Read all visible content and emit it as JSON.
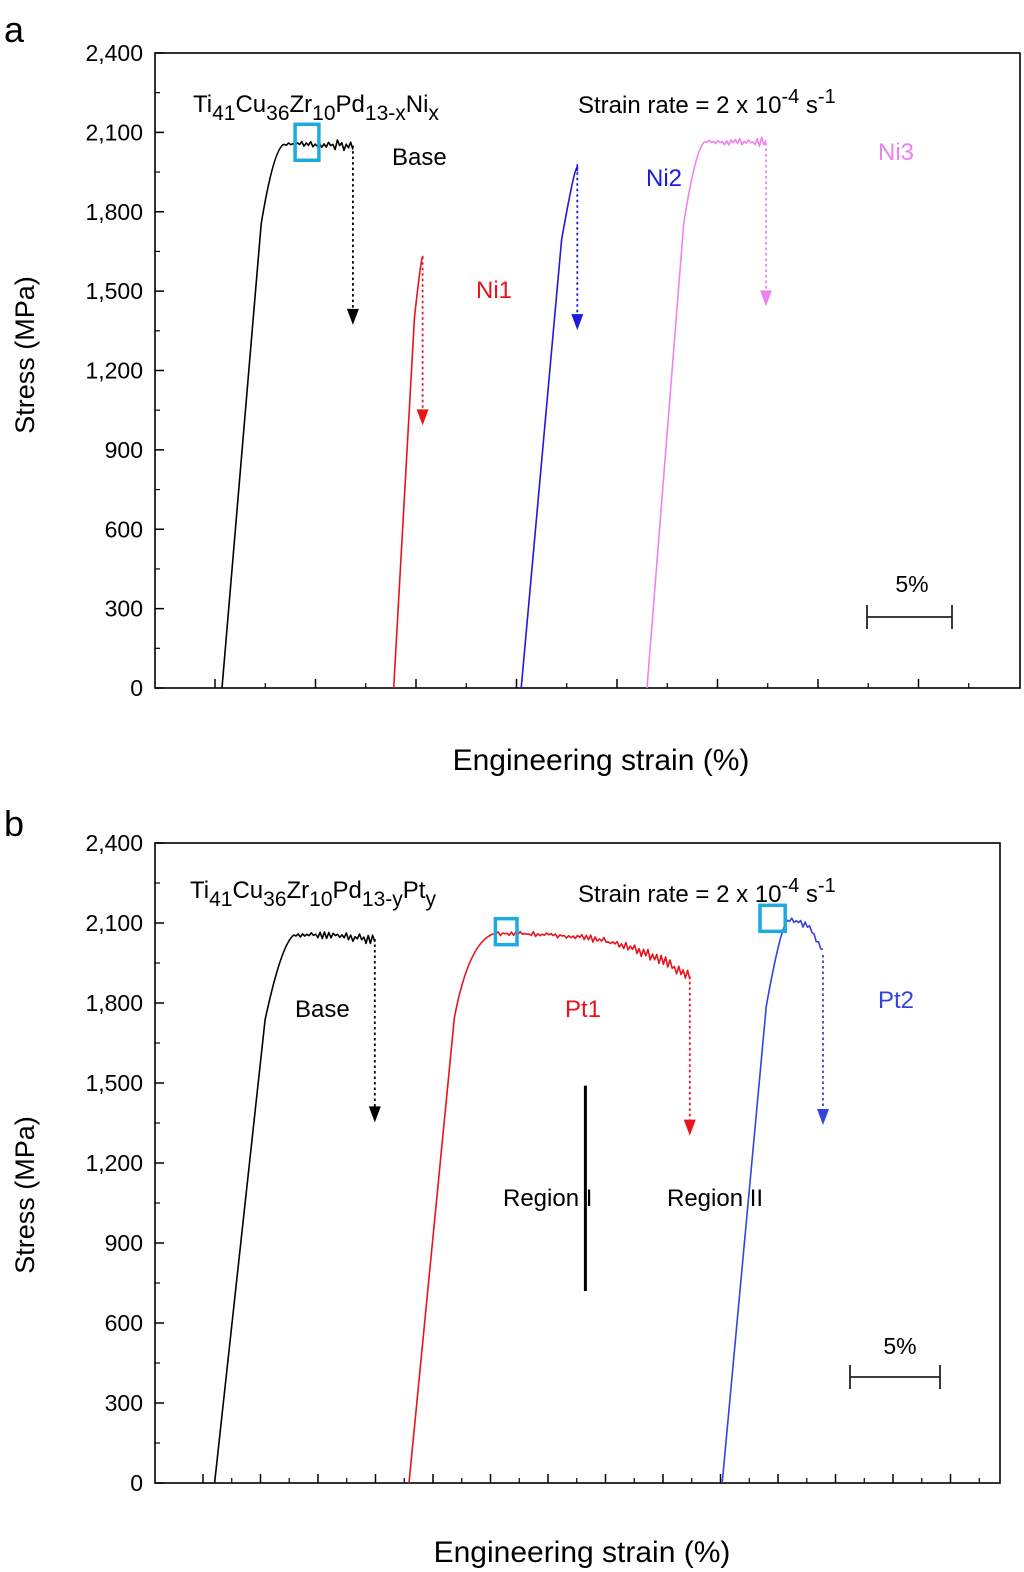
{
  "chart_data": [
    {
      "panel_letter": "a",
      "type": "line",
      "xlabel": "Engineering strain (%)",
      "ylabel": "Stress (MPa)",
      "ylim": [
        0,
        2400
      ],
      "yticks": [
        "0",
        "300",
        "600",
        "900",
        "1,200",
        "1,500",
        "1,800",
        "2,100",
        "2,400"
      ],
      "xticks_labeled": false,
      "grid": false,
      "composition": {
        "base": "Ti",
        "parts": [
          [
            "41",
            "Cu"
          ],
          [
            "36",
            "Zr"
          ],
          [
            "10",
            "Pd"
          ],
          [
            "13-x",
            "Ni"
          ],
          [
            "x",
            ""
          ]
        ]
      },
      "strain_rate": {
        "prefix": "Strain rate = 2 x 10",
        "exp": "-4",
        "mid": " s",
        "exp2": "-1"
      },
      "scale_bar_label": "5%",
      "scale_bar_strain": 5,
      "series": [
        {
          "name": "Base",
          "color": "#000000",
          "start_strain": 0.0,
          "elastic_end_strain": 3.2,
          "yield_stress": 2040,
          "plateau_stress": 2055,
          "fracture_strain": 7.7,
          "fracture_stress": 2050,
          "drop_to_stress": 1380,
          "highlight_box": [
            4.3,
            5.7
          ]
        },
        {
          "name": "Ni1",
          "color": "#e8141c",
          "start_strain": 10.1,
          "elastic_end_strain": 11.8,
          "yield_stress": 1630,
          "plateau_stress": 1630,
          "fracture_strain": 11.8,
          "fracture_stress": 1630,
          "drop_to_stress": 1000
        },
        {
          "name": "Ni2",
          "color": "#1a1ae0",
          "start_strain": 17.6,
          "elastic_end_strain": 20.9,
          "yield_stress": 1970,
          "plateau_stress": 1970,
          "fracture_strain": 20.9,
          "fracture_stress": 1970,
          "drop_to_stress": 1360
        },
        {
          "name": "Ni3",
          "color": "#ee82ee",
          "start_strain": 25.0,
          "elastic_end_strain": 28.0,
          "yield_stress": 2040,
          "plateau_stress": 2065,
          "fracture_strain": 32.0,
          "fracture_stress": 2060,
          "drop_to_stress": 1450
        }
      ]
    },
    {
      "panel_letter": "b",
      "type": "line",
      "xlabel": "Engineering strain (%)",
      "ylabel": "Stress (MPa)",
      "ylim": [
        0,
        2400
      ],
      "yticks": [
        "0",
        "300",
        "600",
        "900",
        "1,200",
        "1,500",
        "1,800",
        "2,100",
        "2,400"
      ],
      "xticks_labeled": false,
      "grid": false,
      "composition": {
        "base": "Ti",
        "parts": [
          [
            "41",
            "Cu"
          ],
          [
            "36",
            "Zr"
          ],
          [
            "10",
            "Pd"
          ],
          [
            "13-y",
            "Pt"
          ],
          [
            "y",
            ""
          ]
        ]
      },
      "strain_rate": {
        "prefix": "Strain rate = 2 x 10",
        "exp": "-4",
        "mid": " s",
        "exp2": "-1"
      },
      "scale_bar_label": "5%",
      "scale_bar_strain": 5,
      "regions": [
        "Region I",
        "Region II"
      ],
      "region_divider_strain": 21.3,
      "region_divider_stress": [
        720,
        1490
      ],
      "series": [
        {
          "name": "Base",
          "color": "#000000",
          "start_strain": 0.7,
          "elastic_end_strain": 4.6,
          "yield_stress": 2020,
          "plateau_stress": 2055,
          "fracture_strain": 9.6,
          "fracture_stress": 2040,
          "drop_to_stress": 1360
        },
        {
          "name": "Pt1",
          "color": "#e8141c",
          "start_strain": 11.5,
          "elastic_end_strain": 15.0,
          "yield_stress": 2030,
          "plateau_stress": 2060,
          "fracture_strain": 27.1,
          "fracture_stress": 1900,
          "drop_to_stress": 1310,
          "highlight_box": [
            16.3,
            17.5
          ]
        },
        {
          "name": "Pt2",
          "color": "#3344dd",
          "start_strain": 28.9,
          "elastic_end_strain": 32.3,
          "yield_stress": 2080,
          "plateau_stress": 2110,
          "fracture_strain": 34.5,
          "fracture_stress": 1980,
          "drop_to_stress": 1350,
          "highlight_box": [
            31.0,
            32.4
          ]
        }
      ]
    }
  ]
}
